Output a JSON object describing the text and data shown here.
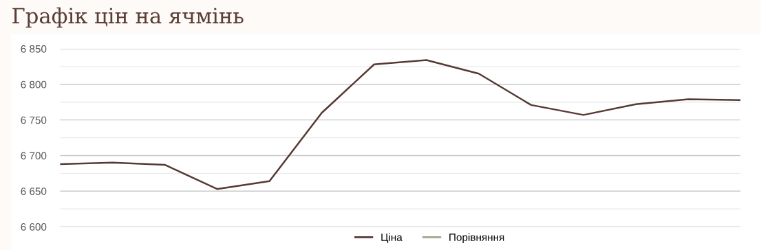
{
  "chart_data": {
    "type": "line",
    "title": "Графік цін на ячмінь",
    "categories": [
      null,
      null,
      null,
      null,
      null,
      null,
      null,
      null,
      null,
      null,
      null,
      null,
      null,
      null
    ],
    "series": [
      {
        "name": "Ціна",
        "color": "#553a33",
        "values": [
          6688,
          6690,
          6687,
          6653,
          6664,
          6760,
          6828,
          6834,
          6815,
          6771,
          6757,
          6772,
          6779,
          6778
        ]
      },
      {
        "name": "Порівняння",
        "color": "#a3a38c",
        "values": [
          null,
          null,
          null,
          null,
          null,
          null,
          null,
          null,
          null,
          null,
          null,
          null,
          null,
          null
        ]
      }
    ],
    "ylim": [
      6600,
      6850
    ],
    "yticks": [
      {
        "value": 6600,
        "label": "6 600"
      },
      {
        "value": 6625,
        "label": null
      },
      {
        "value": 6650,
        "label": "6 650"
      },
      {
        "value": 6675,
        "label": null
      },
      {
        "value": 6700,
        "label": "6 700"
      },
      {
        "value": 6725,
        "label": null
      },
      {
        "value": 6750,
        "label": "6 750"
      },
      {
        "value": 6775,
        "label": null
      },
      {
        "value": 6800,
        "label": "6 800"
      },
      {
        "value": 6825,
        "label": null
      },
      {
        "value": 6850,
        "label": "6 850"
      }
    ],
    "grid": "y",
    "legend": "bottom",
    "marker": "none",
    "line_style": "solid",
    "tick_labels": "y"
  }
}
